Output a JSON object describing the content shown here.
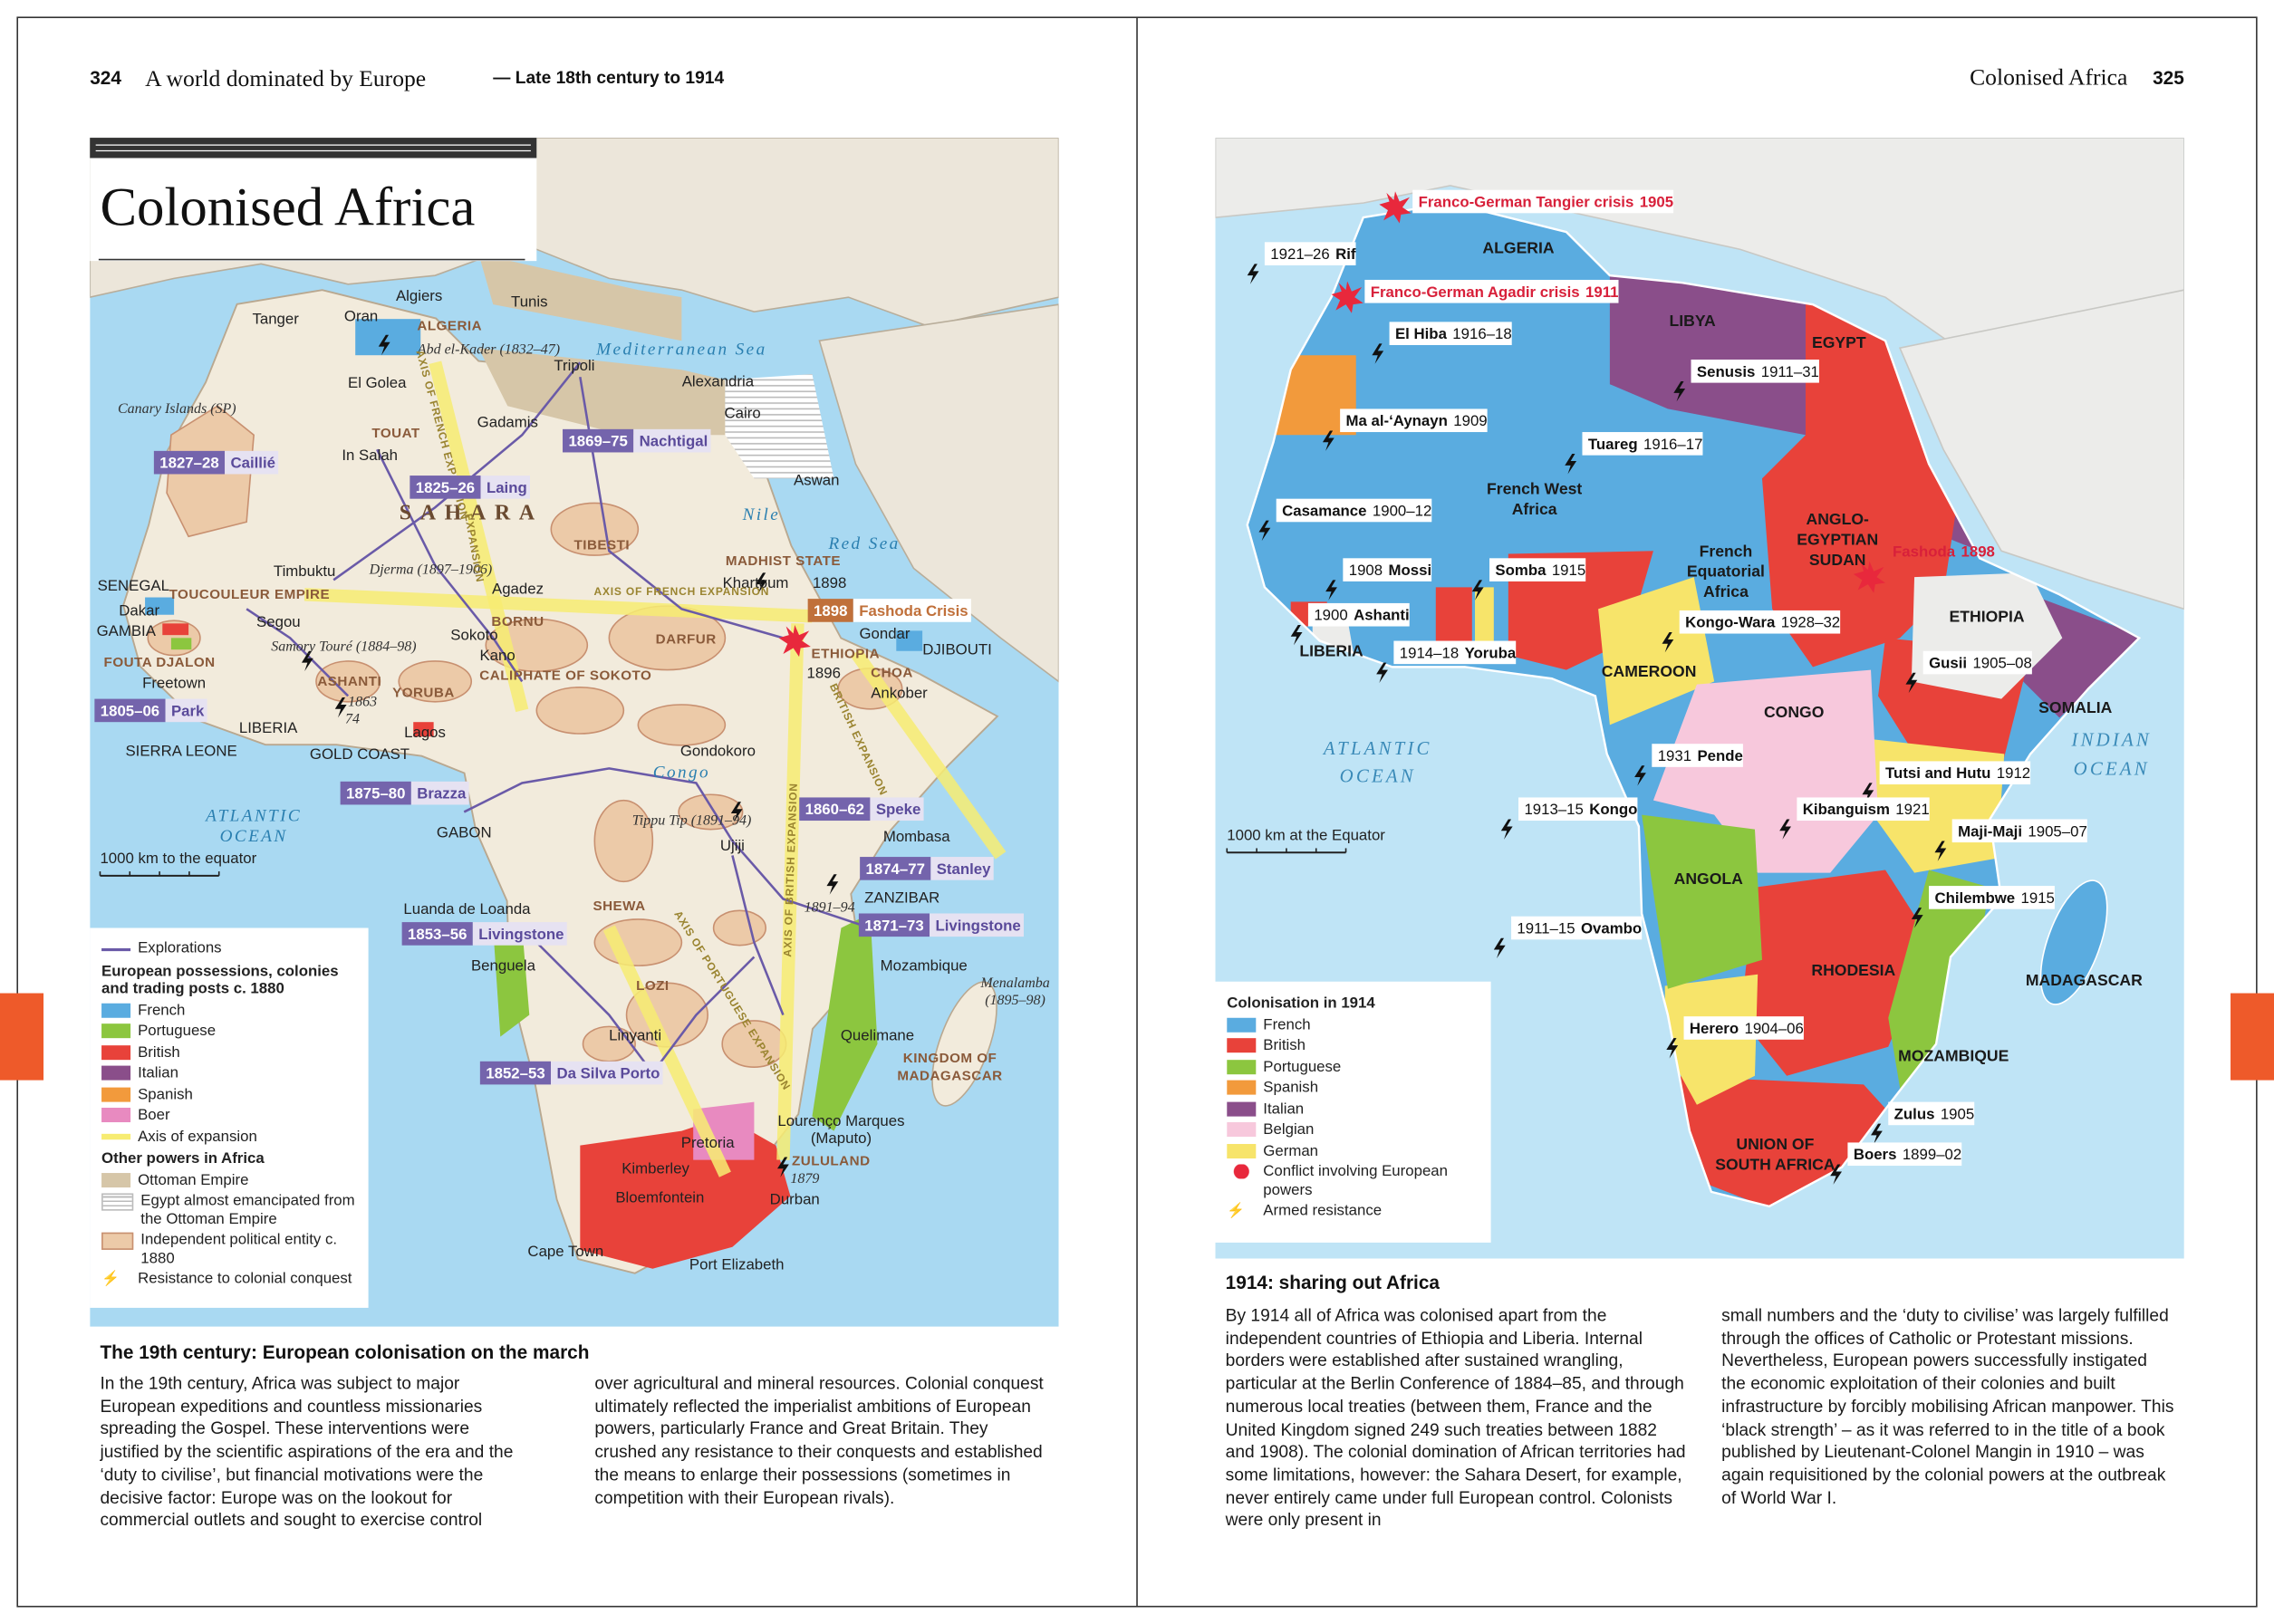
{
  "left_page": {
    "page_number": "324",
    "running_head": "A world dominated by Europe",
    "running_head_sub": "— Late 18th century to 1914",
    "title": "Colonised Africa",
    "map": {
      "places": [
        "Tanger",
        "Oran",
        "Algiers",
        "Tunis",
        "ALGERIA",
        "Abd el-Kader (1832–47)",
        "Mediterranean Sea",
        "Tripoli",
        "Alexandria",
        "Cairo",
        "Canary Islands (SP)",
        "El Golea",
        "Gadamis",
        "TOUAT",
        "In Salah",
        "SAHARA",
        "Aswan",
        "Nile",
        "Red Sea",
        "MADHIST STATE",
        "Khartoum",
        "1898",
        "TIBESTI",
        "Timbuktu",
        "Djerma (1897–1906)",
        "Agadez",
        "AXIS OF FRENCH EXPANSION",
        "SENEGAL",
        "Dakar",
        "TOUCOULEUR EMPIRE",
        "Segou",
        "GAMBIA",
        "BORNU",
        "Sokoto",
        "DARFUR",
        "Gondar",
        "DJIBOUTI",
        "ETHIOPIA",
        "Samory Touré (1884–98)",
        "Kano",
        "FOUTA DJALON",
        "1896",
        "CHOA",
        "CALIPHATE OF SOKOTO",
        "Freetown",
        "ASHANTI",
        "YORUBA",
        "Ankober",
        "1863",
        "74",
        "LIBERIA",
        "Lagos",
        "SIERRA LEONE",
        "GOLD COAST",
        "Gondokoro",
        "Congo",
        "Tippu Tip (1891–94)",
        "ATLANTIC",
        "OCEAN",
        "GABON",
        "Ujiji",
        "Mombasa",
        "ZANZIBAR",
        "1891–94",
        "Luanda de Loanda",
        "SHEWA",
        "Benguela",
        "Mozambique",
        "LOZI",
        "Menalamba",
        "(1895–98)",
        "Linyanti",
        "Quelimane",
        "KINGDOM OF",
        "MADAGASCAR",
        "Lourenço Marques",
        "(Maputo)",
        "Pretoria",
        "ZULULAND",
        "1879",
        "Kimberley",
        "Bloemfontein",
        "Durban",
        "Cape Town",
        "Port Elizabeth",
        "AXIS OF FRENCH EXPANSION",
        "EXPANSION",
        "AXIS OF BRITISH EXPANSION",
        "BRITISH EXPANSION",
        "AXIS OF PORTUGUESE EXPANSION"
      ],
      "explorers": [
        {
          "dates": "1827–28",
          "name": "Caillié"
        },
        {
          "dates": "1869–75",
          "name": "Nachtigal"
        },
        {
          "dates": "1825–26",
          "name": "Laing"
        },
        {
          "dates": "1805–06",
          "name": "Park"
        },
        {
          "dates": "1875–80",
          "name": "Brazza"
        },
        {
          "dates": "1860–62",
          "name": "Speke"
        },
        {
          "dates": "1874–77",
          "name": "Stanley"
        },
        {
          "dates": "1853–56",
          "name": "Livingstone"
        },
        {
          "dates": "1871–73",
          "name": "Livingstone"
        },
        {
          "dates": "1852–53",
          "name": "Da Silva Porto"
        }
      ],
      "crisis": {
        "date": "1898",
        "name": "Fashoda Crisis"
      },
      "scale": "1000 km to the equator",
      "legend": {
        "explorations": "Explorations",
        "heading": "European possessions, colonies and trading posts c. 1880",
        "items": [
          "French",
          "Portuguese",
          "British",
          "Italian",
          "Spanish",
          "Boer",
          "Axis of expansion"
        ],
        "other_heading": "Other powers in Africa",
        "other_items": [
          "Ottoman Empire",
          "Egypt almost emancipated from the Ottoman Empire",
          "Independent political entity c. 1880",
          "Resistance to colonial conquest"
        ]
      }
    },
    "section_title": "The 19th century: European colonisation on the march",
    "paragraphs": [
      "In the 19th century, Africa was subject to major European expeditions and countless missionaries spreading the Gospel. These interventions were justified by the scientific aspirations of the era and the ‘duty to civilise’, but financial motivations were the decisive factor: Europe was on the lookout for commercial outlets and sought to exercise control",
      "over agricultural and mineral resources. Colonial conquest ultimately reflected the imperialist ambitions of European powers, particularly France and Great Britain. They crushed any resistance to their conquests and established the means to enlarge their possessions (sometimes in competition with their European rivals)."
    ]
  },
  "right_page": {
    "running_head": "Colonised Africa",
    "page_number": "325",
    "map": {
      "conflicts": [
        [
          "Franco-German Tangier crisis",
          "1905"
        ],
        [
          "Franco-German Agadir crisis",
          "1911"
        ],
        [
          "Fashoda",
          "1898"
        ]
      ],
      "resistance": [
        [
          "1921–26",
          "Rif"
        ],
        [
          "El Hiba",
          "1916–18"
        ],
        [
          "Senusis",
          "1911–31"
        ],
        [
          "Ma al-‘Aynayn",
          "1909"
        ],
        [
          "Tuareg",
          "1916–17"
        ],
        [
          "Casamance",
          "1900–12"
        ],
        [
          "1908",
          "Mossi"
        ],
        [
          "Somba",
          "1915"
        ],
        [
          "1900",
          "Ashanti"
        ],
        [
          "1914–18",
          "Yoruba"
        ],
        [
          "Kongo-Wara",
          "1928–32"
        ],
        [
          "Gusii",
          "1905–08"
        ],
        [
          "1931",
          "Pende"
        ],
        [
          "Tutsi and Hutu",
          "1912"
        ],
        [
          "1913–15",
          "Kongo"
        ],
        [
          "Kibanguism",
          "1921"
        ],
        [
          "Maji-Maji",
          "1905–07"
        ],
        [
          "Chilembwe",
          "1915"
        ],
        [
          "1911–15",
          "Ovambo"
        ],
        [
          "Herero",
          "1904–06"
        ],
        [
          "Zulus",
          "1905"
        ],
        [
          "Boers",
          "1899–02"
        ]
      ],
      "regions": [
        "ALGERIA",
        "LIBYA",
        "EGYPT",
        "French West",
        "Africa",
        "ANGLO-",
        "EGYPTIAN",
        "SUDAN",
        "French",
        "Equatorial",
        "Africa",
        "ETHIOPIA",
        "LIBERIA",
        "CAMEROON",
        "CONGO",
        "SOMALIA",
        "ATLANTIC",
        "OCEAN",
        "INDIAN",
        "OCEAN",
        "ANGOLA",
        "MADAGASCAR",
        "RHODESIA",
        "MOZAMBIQUE",
        "UNION OF",
        "SOUTH AFRICA"
      ],
      "scale": "1000 km at the Equator",
      "legend": {
        "title": "Colonisation in 1914",
        "items": [
          "French",
          "British",
          "Portuguese",
          "Spanish",
          "Italian",
          "Belgian",
          "German"
        ],
        "conflict": "Conflict involving European powers",
        "resistance": "Armed resistance"
      }
    },
    "section_title": "1914: sharing out Africa",
    "paragraphs": [
      "By 1914 all of Africa was colonised apart from the independent countries of Ethiopia and Liberia. Internal borders were established after sustained wrangling, particular at the Berlin Conference of 1884–85, and through numerous local treaties (between them, France and the United Kingdom signed 249 such treaties between 1882 and 1908). The colonial domination of African territories had some limitations, however: the Sahara Desert, for example, never entirely came under full European control. Colonists were only present in",
      "small numbers and the ‘duty to civilise’ was largely fulfilled through the offices of Catholic or Protestant missions. Nevertheless, European powers successfully instigated the economic exploitation of their colonies and built infrastructure by forcibly mobilising African manpower. This ‘black strength’ – as it was referred to in the title of a book published by Lieutenant-Colonel Mangin in 1910 – was again requisitioned by the colonial powers at the outbreak of World War I."
    ]
  }
}
